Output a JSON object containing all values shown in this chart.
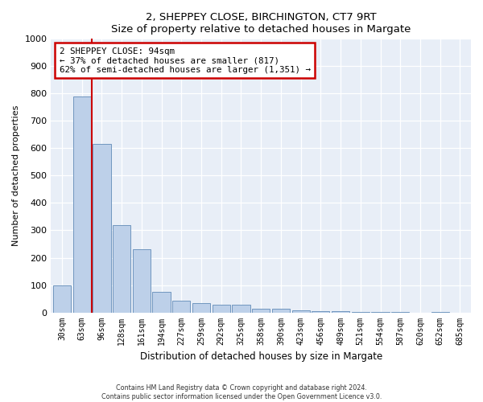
{
  "title1": "2, SHEPPEY CLOSE, BIRCHINGTON, CT7 9RT",
  "title2": "Size of property relative to detached houses in Margate",
  "xlabel": "Distribution of detached houses by size in Margate",
  "ylabel": "Number of detached properties",
  "categories": [
    "30sqm",
    "63sqm",
    "96sqm",
    "128sqm",
    "161sqm",
    "194sqm",
    "227sqm",
    "259sqm",
    "292sqm",
    "325sqm",
    "358sqm",
    "390sqm",
    "423sqm",
    "456sqm",
    "489sqm",
    "521sqm",
    "554sqm",
    "587sqm",
    "620sqm",
    "652sqm",
    "685sqm"
  ],
  "values": [
    100,
    790,
    615,
    320,
    230,
    75,
    43,
    35,
    28,
    27,
    14,
    12,
    8,
    5,
    4,
    2,
    1,
    1,
    0,
    3,
    0
  ],
  "bar_color": "#bdd0e9",
  "bar_edge_color": "#7096bf",
  "property_line_color": "#cc0000",
  "annotation_text": "2 SHEPPEY CLOSE: 94sqm\n← 37% of detached houses are smaller (817)\n62% of semi-detached houses are larger (1,351) →",
  "annotation_box_color": "#cc0000",
  "ylim": [
    0,
    1000
  ],
  "yticks": [
    0,
    100,
    200,
    300,
    400,
    500,
    600,
    700,
    800,
    900,
    1000
  ],
  "footer1": "Contains HM Land Registry data © Crown copyright and database right 2024.",
  "footer2": "Contains public sector information licensed under the Open Government Licence v3.0.",
  "bg_color": "#e8eef7"
}
